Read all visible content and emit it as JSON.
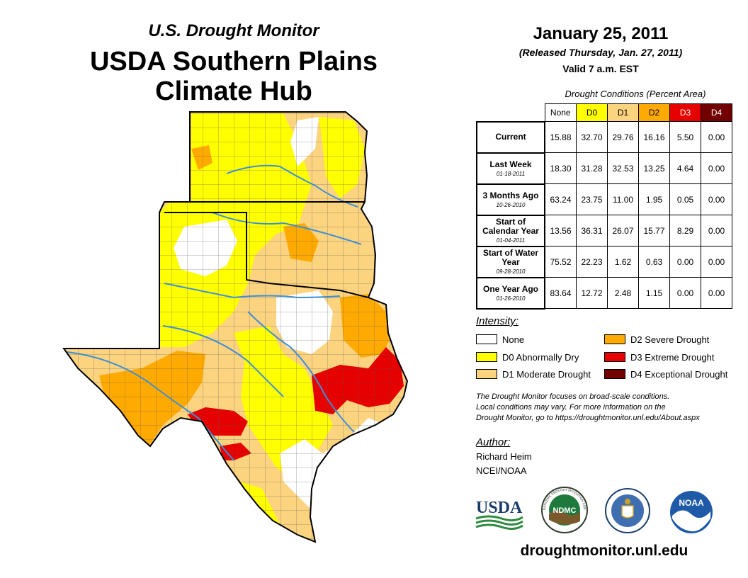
{
  "header": {
    "subtitle": "U.S. Drought Monitor",
    "title_line1": "USDA Southern Plains",
    "title_line2": "Climate Hub"
  },
  "date_block": {
    "date": "January 25, 2011",
    "released": "(Released Thursday, Jan. 27, 2011)",
    "valid": "Valid 7 a.m. EST"
  },
  "table": {
    "caption": "Drought Conditions (Percent Area)",
    "columns": [
      {
        "label": "None",
        "color": "#ffffff",
        "text_color": "#000000"
      },
      {
        "label": "D0",
        "color": "#ffff00",
        "text_color": "#000000"
      },
      {
        "label": "D1",
        "color": "#fcd37f",
        "text_color": "#000000"
      },
      {
        "label": "D2",
        "color": "#ffaa00",
        "text_color": "#000000"
      },
      {
        "label": "D3",
        "color": "#e60000",
        "text_color": "#ffffff"
      },
      {
        "label": "D4",
        "color": "#730000",
        "text_color": "#ffffff"
      }
    ],
    "rows": [
      {
        "label": "Current",
        "sub": "",
        "values": [
          "15.88",
          "32.70",
          "29.76",
          "16.16",
          "5.50",
          "0.00"
        ]
      },
      {
        "label": "Last Week",
        "sub": "01-18-2011",
        "values": [
          "18.30",
          "31.28",
          "32.53",
          "13.25",
          "4.64",
          "0.00"
        ]
      },
      {
        "label": "3 Months Ago",
        "sub": "10-26-2010",
        "values": [
          "63.24",
          "23.75",
          "11.00",
          "1.95",
          "0.05",
          "0.00"
        ]
      },
      {
        "label": "Start of Calendar Year",
        "sub": "01-04-2011",
        "values": [
          "13.56",
          "36.31",
          "26.07",
          "15.77",
          "8.29",
          "0.00"
        ]
      },
      {
        "label": "Start of Water Year",
        "sub": "09-28-2010",
        "values": [
          "75.52",
          "22.23",
          "1.62",
          "0.63",
          "0.00",
          "0.00"
        ]
      },
      {
        "label": "One Year Ago",
        "sub": "01-26-2010",
        "values": [
          "83.64",
          "12.72",
          "2.48",
          "1.15",
          "0.00",
          "0.00"
        ]
      }
    ]
  },
  "legend": {
    "title": "Intensity:",
    "items": [
      {
        "label": "None",
        "color": "#ffffff"
      },
      {
        "label": "D0 Abnormally Dry",
        "color": "#ffff00"
      },
      {
        "label": "D1 Moderate Drought",
        "color": "#fcd37f"
      },
      {
        "label": "D2 Severe Drought",
        "color": "#ffaa00"
      },
      {
        "label": "D3 Extreme Drought",
        "color": "#e60000"
      },
      {
        "label": "D4 Exceptional Drought",
        "color": "#730000"
      }
    ]
  },
  "note": {
    "line1": "The Drought Monitor focuses on broad-scale conditions.",
    "line2": "Local conditions may vary. For more information on the",
    "line3": "Drought Monitor, go to https://droughtmonitor.unl.edu/About.aspx"
  },
  "author": {
    "title": "Author:",
    "name": "Richard Heim",
    "org": "NCEI/NOAA"
  },
  "logos": {
    "usda": "USDA",
    "ndmc": "NDMC",
    "ndmc_ring": "NATIONAL DROUGHT MITIGATION CENTER · UNIVERSITY OF NEBRASKA",
    "noaa": "NOAA"
  },
  "footer": {
    "website": "droughtmonitor.unl.edu"
  },
  "map_colors": {
    "none": "#ffffff",
    "d0": "#ffff00",
    "d1": "#fcd37f",
    "d2": "#ffaa00",
    "d3": "#e60000",
    "d4": "#730000",
    "river": "#3d8fd6"
  }
}
